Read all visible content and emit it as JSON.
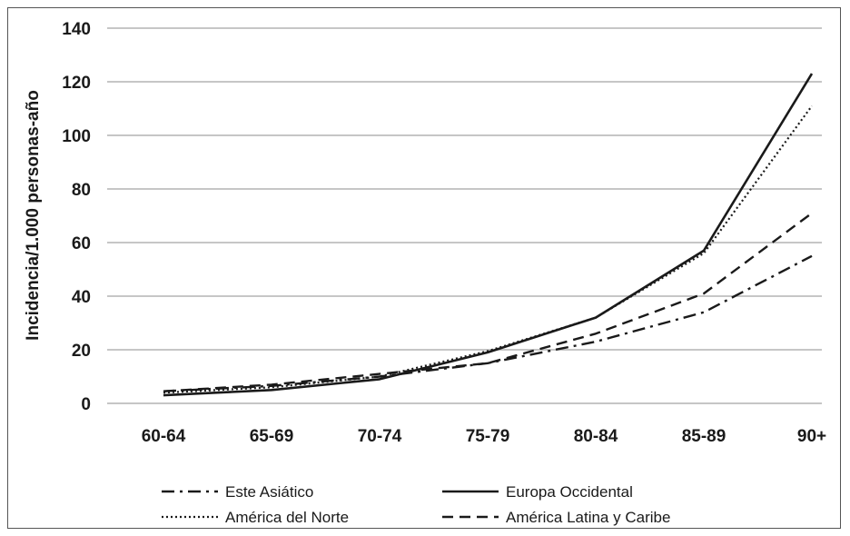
{
  "chart_data": {
    "type": "line",
    "title": "",
    "xlabel": "",
    "ylabel": "Incidencia/1.000 personas-año",
    "categories": [
      "60-64",
      "65-69",
      "70-74",
      "75-79",
      "80-84",
      "85-89",
      "90+"
    ],
    "ylim": [
      0,
      140
    ],
    "yticks": [
      0,
      20,
      40,
      60,
      80,
      100,
      120,
      140
    ],
    "grid": "horizontal",
    "legend_position": "bottom",
    "series": [
      {
        "name": "Este Asiático",
        "style": "dash-dot",
        "color": "#1a1a1a",
        "values": [
          4.5,
          6.5,
          10,
          15,
          23,
          34,
          55
        ]
      },
      {
        "name": "Europa Occidental",
        "style": "solid",
        "color": "#1a1a1a",
        "values": [
          3,
          5,
          9,
          19,
          32,
          57,
          123
        ]
      },
      {
        "name": "América del Norte",
        "style": "dotted",
        "color": "#1a1a1a",
        "values": [
          4,
          6,
          10,
          19.5,
          32,
          56,
          111
        ]
      },
      {
        "name": "América Latina y Caribe",
        "style": "dashed",
        "color": "#1a1a1a",
        "values": [
          4.5,
          7,
          11,
          15,
          26,
          41,
          71
        ]
      }
    ]
  }
}
